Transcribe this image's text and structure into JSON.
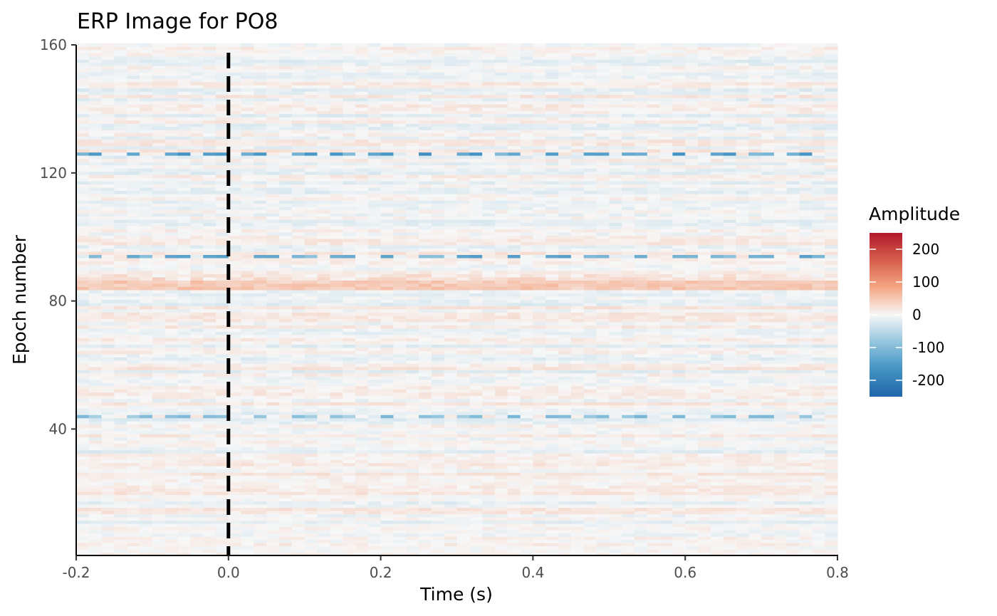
{
  "chart_data": {
    "type": "heatmap",
    "title": "ERP Image for PO8",
    "xlabel": "Time (s)",
    "ylabel": "Epoch number",
    "xlim": [
      -0.2,
      0.8
    ],
    "ylim": [
      1,
      160
    ],
    "x_ticks": [
      {
        "value": -0.2,
        "label": "-0.2"
      },
      {
        "value": 0.0,
        "label": "0.0"
      },
      {
        "value": 0.2,
        "label": "0.2"
      },
      {
        "value": 0.4,
        "label": "0.4"
      },
      {
        "value": 0.6,
        "label": "0.6"
      },
      {
        "value": 0.8,
        "label": "0.8"
      }
    ],
    "y_ticks": [
      {
        "value": 40,
        "label": "40"
      },
      {
        "value": 80,
        "label": "80"
      },
      {
        "value": 120,
        "label": "120"
      },
      {
        "value": 160,
        "label": "160"
      }
    ],
    "n_epochs": 160,
    "stimulus_onset": 0.0,
    "strong_negative_epochs": [
      {
        "epoch": 126,
        "amplitude": -180
      },
      {
        "epoch": 94,
        "amplitude": -150
      },
      {
        "epoch": 44,
        "amplitude": -110
      }
    ],
    "positive_band_epochs": {
      "range": [
        84,
        88
      ],
      "amplitude": 35
    },
    "colorbar": {
      "title": "Amplitude",
      "limits": [
        -250,
        250
      ],
      "ticks": [
        {
          "value": 200,
          "label": "200"
        },
        {
          "value": 100,
          "label": "100"
        },
        {
          "value": 0,
          "label": "0"
        },
        {
          "value": -100,
          "label": "-100"
        },
        {
          "value": -200,
          "label": "-200"
        }
      ],
      "colors": {
        "low": "#2166ac",
        "mid": "#f7f7f7",
        "high": "#b2182b"
      }
    },
    "grid": false,
    "legend_position": "right"
  }
}
